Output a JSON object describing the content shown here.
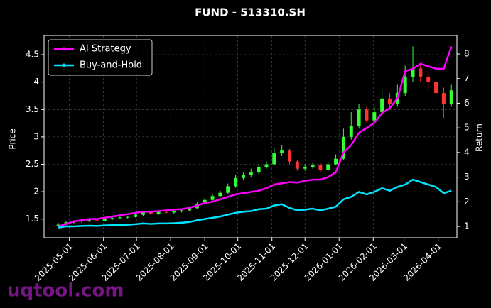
{
  "chart_data": {
    "type": "candlestick",
    "title": "FUND - 513310.SH",
    "y_label": "Price",
    "y2_label": "Return",
    "watermark": "uqtool.com",
    "x": [
      "2025-04-21",
      "2025-04-28",
      "2025-05-05",
      "2025-05-12",
      "2025-05-19",
      "2025-05-26",
      "2025-06-02",
      "2025-06-09",
      "2025-06-16",
      "2025-06-23",
      "2025-06-30",
      "2025-07-07",
      "2025-07-14",
      "2025-07-21",
      "2025-07-28",
      "2025-08-04",
      "2025-08-11",
      "2025-08-18",
      "2025-08-25",
      "2025-09-01",
      "2025-09-08",
      "2025-09-15",
      "2025-09-22",
      "2025-09-29",
      "2025-10-06",
      "2025-10-13",
      "2025-10-20",
      "2025-10-27",
      "2025-11-03",
      "2025-11-10",
      "2025-11-17",
      "2025-11-24",
      "2025-12-01",
      "2025-12-08",
      "2025-12-15",
      "2025-12-22",
      "2025-12-29",
      "2026-01-05",
      "2026-01-12",
      "2026-01-19",
      "2026-01-26",
      "2026-02-02",
      "2026-02-09",
      "2026-02-16",
      "2026-02-23",
      "2026-03-02",
      "2026-03-09",
      "2026-03-16",
      "2026-03-23",
      "2026-03-30",
      "2026-04-06",
      "2026-04-13"
    ],
    "open": [
      1.38,
      1.4,
      1.44,
      1.46,
      1.47,
      1.48,
      1.47,
      1.5,
      1.52,
      1.53,
      1.54,
      1.58,
      1.62,
      1.6,
      1.63,
      1.62,
      1.64,
      1.66,
      1.7,
      1.78,
      1.85,
      1.92,
      1.98,
      2.1,
      2.25,
      2.3,
      2.35,
      2.45,
      2.5,
      2.7,
      2.75,
      2.55,
      2.42,
      2.45,
      2.48,
      2.4,
      2.5,
      2.6,
      3.0,
      3.2,
      3.5,
      3.3,
      3.45,
      3.7,
      3.6,
      3.8,
      4.1,
      4.25,
      4.1,
      4.0,
      3.8,
      3.6
    ],
    "high": [
      1.43,
      1.46,
      1.48,
      1.49,
      1.5,
      1.5,
      1.52,
      1.54,
      1.55,
      1.56,
      1.6,
      1.65,
      1.64,
      1.65,
      1.65,
      1.66,
      1.69,
      1.73,
      1.82,
      1.88,
      1.96,
      2.02,
      2.15,
      2.3,
      2.35,
      2.42,
      2.5,
      2.55,
      2.8,
      2.85,
      2.78,
      2.58,
      2.5,
      2.52,
      2.52,
      2.55,
      2.68,
      3.15,
      3.45,
      3.6,
      3.55,
      3.55,
      3.85,
      3.8,
      3.95,
      4.3,
      4.65,
      4.35,
      4.2,
      4.05,
      3.9,
      3.95
    ],
    "low": [
      1.36,
      1.39,
      1.42,
      1.44,
      1.45,
      1.45,
      1.46,
      1.48,
      1.5,
      1.51,
      1.53,
      1.56,
      1.58,
      1.58,
      1.6,
      1.6,
      1.62,
      1.64,
      1.68,
      1.76,
      1.83,
      1.9,
      1.96,
      2.07,
      2.22,
      2.27,
      2.32,
      2.42,
      2.48,
      2.65,
      2.5,
      2.38,
      2.38,
      2.42,
      2.36,
      2.38,
      2.48,
      2.58,
      2.95,
      3.15,
      3.25,
      3.25,
      3.4,
      3.5,
      3.55,
      3.75,
      4.0,
      4.0,
      3.85,
      3.7,
      3.35,
      3.55
    ],
    "close": [
      1.4,
      1.44,
      1.46,
      1.47,
      1.48,
      1.47,
      1.5,
      1.52,
      1.53,
      1.54,
      1.58,
      1.62,
      1.6,
      1.63,
      1.62,
      1.64,
      1.66,
      1.7,
      1.78,
      1.85,
      1.92,
      1.98,
      2.1,
      2.25,
      2.3,
      2.35,
      2.45,
      2.5,
      2.7,
      2.75,
      2.55,
      2.42,
      2.45,
      2.48,
      2.4,
      2.5,
      2.6,
      3.0,
      3.2,
      3.5,
      3.3,
      3.45,
      3.7,
      3.6,
      3.8,
      4.1,
      4.25,
      4.1,
      4.0,
      3.8,
      3.6,
      3.85
    ],
    "up_color": "#33ff33",
    "down_color": "#ff3333",
    "series": [
      {
        "name": "AI Strategy",
        "color": "#ff00ff",
        "axis": "y2",
        "values": [
          1.0,
          1.1,
          1.2,
          1.25,
          1.3,
          1.3,
          1.35,
          1.4,
          1.45,
          1.5,
          1.55,
          1.6,
          1.6,
          1.62,
          1.65,
          1.68,
          1.7,
          1.75,
          1.85,
          1.95,
          2.0,
          2.1,
          2.2,
          2.3,
          2.35,
          2.4,
          2.45,
          2.55,
          2.7,
          2.75,
          2.8,
          2.78,
          2.85,
          2.9,
          2.9,
          3.0,
          3.2,
          4.0,
          4.3,
          4.8,
          5.0,
          5.2,
          5.6,
          5.8,
          6.2,
          7.3,
          7.4,
          7.6,
          7.5,
          7.4,
          7.4,
          8.3
        ]
      },
      {
        "name": "Buy-and-Hold",
        "color": "#00e5ff",
        "axis": "y2",
        "values": [
          0.95,
          1.0,
          1.0,
          1.02,
          1.03,
          1.02,
          1.04,
          1.05,
          1.06,
          1.07,
          1.09,
          1.12,
          1.1,
          1.12,
          1.12,
          1.13,
          1.15,
          1.18,
          1.25,
          1.3,
          1.35,
          1.4,
          1.48,
          1.55,
          1.6,
          1.62,
          1.7,
          1.72,
          1.85,
          1.9,
          1.75,
          1.65,
          1.68,
          1.72,
          1.65,
          1.72,
          1.8,
          2.1,
          2.2,
          2.4,
          2.3,
          2.4,
          2.55,
          2.45,
          2.6,
          2.7,
          2.9,
          2.8,
          2.7,
          2.6,
          2.35,
          2.45
        ]
      }
    ],
    "xlim": [
      "2025-04-08",
      "2026-04-18"
    ],
    "xticks": [
      "2025-05-01",
      "2025-06-01",
      "2025-07-01",
      "2025-08-01",
      "2025-09-01",
      "2025-10-01",
      "2025-11-01",
      "2025-12-01",
      "2026-01-01",
      "2026-02-01",
      "2026-03-01",
      "2026-04-01"
    ],
    "ylim": [
      1.16,
      4.85
    ],
    "yticks": [
      1.5,
      2.0,
      2.5,
      3.0,
      3.5,
      4.0,
      4.5
    ],
    "y2lim": [
      0.54,
      8.75
    ],
    "y2ticks": [
      1,
      2,
      3,
      4,
      5,
      6,
      7,
      8
    ],
    "grid": true,
    "legend": "upper-left"
  }
}
